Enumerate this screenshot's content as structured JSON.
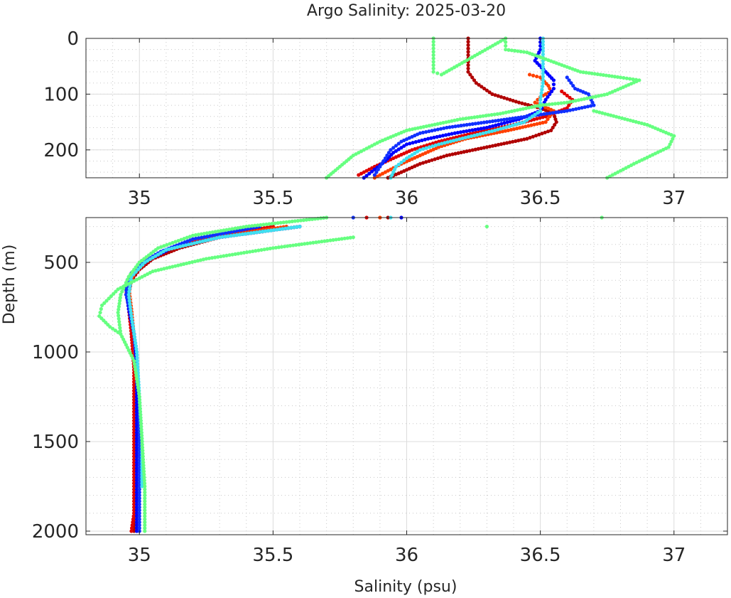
{
  "chart_data": [
    {
      "type": "scatter",
      "panel": "top",
      "title": "Argo Salinity: 2025-03-20",
      "xlabel": "",
      "ylabel": "",
      "xlim": [
        34.8,
        37.2
      ],
      "ylim": [
        0,
        250
      ],
      "y_reversed": true,
      "grid": true,
      "minor_grid": true,
      "xticks": [
        35,
        35.5,
        36,
        36.5,
        37
      ],
      "xtick_labels": [
        "35",
        "35.5",
        "36",
        "36.5",
        "37"
      ],
      "yticks": [
        0,
        100,
        200
      ],
      "ytick_labels": [
        "0",
        "100",
        "200"
      ],
      "series": [
        {
          "color": "#b00000",
          "points": [
            [
              36.23,
              0
            ],
            [
              36.23,
              30
            ],
            [
              36.23,
              60
            ],
            [
              36.26,
              80
            ],
            [
              36.32,
              100
            ],
            [
              36.42,
              115
            ],
            [
              36.5,
              125
            ],
            [
              36.55,
              135
            ],
            [
              36.56,
              150
            ],
            [
              36.54,
              165
            ],
            [
              36.45,
              180
            ],
            [
              36.3,
              195
            ],
            [
              36.15,
              210
            ],
            [
              36.05,
              225
            ],
            [
              35.98,
              240
            ],
            [
              35.93,
              250
            ]
          ]
        },
        {
          "color": "#e00000",
          "points": [
            [
              36.58,
              95
            ],
            [
              36.62,
              110
            ],
            [
              36.6,
              125
            ],
            [
              36.52,
              140
            ],
            [
              36.4,
              155
            ],
            [
              36.25,
              170
            ],
            [
              36.12,
              185
            ],
            [
              36.02,
              200
            ],
            [
              35.95,
              215
            ],
            [
              35.88,
              230
            ],
            [
              35.82,
              245
            ]
          ]
        },
        {
          "color": "#ff4000",
          "points": [
            [
              36.46,
              65
            ],
            [
              36.5,
              70
            ],
            [
              36.53,
              85
            ],
            [
              36.54,
              95
            ],
            [
              36.5,
              105
            ],
            [
              36.48,
              115
            ],
            [
              36.55,
              130
            ],
            [
              36.52,
              150
            ],
            [
              36.38,
              165
            ],
            [
              36.22,
              180
            ],
            [
              36.12,
              195
            ],
            [
              36.05,
              210
            ],
            [
              35.98,
              225
            ],
            [
              35.92,
              240
            ],
            [
              35.88,
              250
            ]
          ]
        },
        {
          "color": "#0000ff",
          "points": [
            [
              36.5,
              0
            ],
            [
              36.5,
              20
            ],
            [
              36.48,
              40
            ],
            [
              36.52,
              60
            ],
            [
              36.55,
              75
            ],
            [
              36.55,
              90
            ],
            [
              36.52,
              110
            ],
            [
              36.5,
              130
            ],
            [
              36.42,
              145
            ],
            [
              36.3,
              160
            ],
            [
              36.18,
              170
            ],
            [
              36.08,
              180
            ],
            [
              36.0,
              190
            ],
            [
              35.95,
              205
            ],
            [
              35.92,
              220
            ],
            [
              35.88,
              235
            ],
            [
              35.84,
              250
            ]
          ]
        },
        {
          "color": "#1030ff",
          "points": [
            [
              36.6,
              70
            ],
            [
              36.63,
              90
            ],
            [
              36.68,
              100
            ],
            [
              36.7,
              120
            ],
            [
              36.6,
              130
            ],
            [
              36.45,
              140
            ],
            [
              36.3,
              150
            ],
            [
              36.15,
              160
            ],
            [
              36.05,
              170
            ],
            [
              35.98,
              185
            ],
            [
              35.94,
              200
            ],
            [
              35.92,
              215
            ],
            [
              35.9,
              230
            ],
            [
              35.88,
              245
            ]
          ]
        },
        {
          "color": "#40e0f0",
          "points": [
            [
              36.51,
              0
            ],
            [
              36.51,
              40
            ],
            [
              36.51,
              80
            ],
            [
              36.5,
              110
            ],
            [
              36.5,
              130
            ],
            [
              36.44,
              150
            ],
            [
              36.33,
              165
            ],
            [
              36.22,
              178
            ],
            [
              36.12,
              190
            ],
            [
              36.05,
              200
            ],
            [
              36.0,
              215
            ],
            [
              35.96,
              230
            ],
            [
              35.94,
              250
            ]
          ]
        },
        {
          "color": "#66ff80",
          "points": [
            [
              36.1,
              0
            ],
            [
              36.1,
              30
            ],
            [
              36.1,
              60
            ],
            [
              36.13,
              65
            ],
            [
              36.37,
              0
            ],
            [
              36.37,
              20
            ],
            [
              36.45,
              25
            ],
            [
              36.65,
              60
            ],
            [
              36.8,
              70
            ],
            [
              36.87,
              75
            ],
            [
              36.75,
              100
            ],
            [
              36.6,
              115
            ],
            [
              36.5,
              120
            ],
            [
              36.35,
              135
            ],
            [
              36.2,
              145
            ],
            [
              36.0,
              165
            ],
            [
              35.9,
              185
            ],
            [
              35.8,
              210
            ],
            [
              35.75,
              230
            ],
            [
              35.7,
              250
            ],
            [
              36.7,
              130
            ],
            [
              36.9,
              155
            ],
            [
              37.0,
              175
            ],
            [
              36.98,
              195
            ],
            [
              36.85,
              225
            ],
            [
              36.75,
              250
            ]
          ]
        }
      ]
    },
    {
      "type": "scatter",
      "panel": "bottom",
      "title": "",
      "xlabel": "Salinity (psu)",
      "ylabel": "Depth (m)",
      "xlim": [
        34.8,
        37.2
      ],
      "ylim": [
        250,
        2020
      ],
      "y_reversed": true,
      "grid": true,
      "minor_grid": true,
      "xticks": [
        35,
        35.5,
        36,
        36.5,
        37
      ],
      "xtick_labels": [
        "35",
        "35.5",
        "36",
        "36.5",
        "37"
      ],
      "yticks": [
        500,
        1000,
        1500,
        2000
      ],
      "ytick_labels": [
        "500",
        "1000",
        "1500",
        "2000"
      ],
      "series": [
        {
          "color": "#b00000",
          "points": [
            [
              35.93,
              250
            ],
            [
              35.6,
              300
            ],
            [
              35.3,
              360
            ],
            [
              35.15,
              420
            ],
            [
              35.05,
              480
            ],
            [
              35.0,
              540
            ],
            [
              34.97,
              600
            ],
            [
              34.96,
              680
            ],
            [
              34.97,
              780
            ],
            [
              34.97,
              900
            ],
            [
              34.98,
              1050
            ],
            [
              34.98,
              1200
            ],
            [
              34.98,
              1400
            ],
            [
              34.98,
              1600
            ],
            [
              34.98,
              1800
            ],
            [
              34.98,
              2000
            ]
          ]
        },
        {
          "color": "#e00000",
          "points": [
            [
              35.85,
              250
            ],
            [
              35.5,
              300
            ],
            [
              35.25,
              360
            ],
            [
              35.1,
              430
            ],
            [
              35.02,
              500
            ],
            [
              34.97,
              570
            ],
            [
              34.95,
              650
            ],
            [
              34.96,
              760
            ],
            [
              34.97,
              900
            ],
            [
              34.98,
              1100
            ],
            [
              34.98,
              1300
            ],
            [
              34.98,
              1500
            ],
            [
              34.98,
              1700
            ],
            [
              34.98,
              1900
            ],
            [
              34.97,
              2000
            ]
          ]
        },
        {
          "color": "#ff4000",
          "points": [
            [
              35.9,
              250
            ],
            [
              35.55,
              300
            ],
            [
              35.28,
              360
            ],
            [
              35.12,
              420
            ],
            [
              35.03,
              490
            ],
            [
              34.98,
              560
            ],
            [
              34.96,
              640
            ],
            [
              34.97,
              760
            ],
            [
              34.98,
              920
            ],
            [
              34.99,
              1200
            ],
            [
              34.99,
              1500
            ],
            [
              34.99,
              1800
            ],
            [
              34.99,
              2000
            ]
          ]
        },
        {
          "color": "#0000ff",
          "points": [
            [
              35.98,
              250
            ],
            [
              35.6,
              300
            ],
            [
              35.3,
              360
            ],
            [
              35.12,
              420
            ],
            [
              35.03,
              490
            ],
            [
              34.97,
              560
            ],
            [
              34.95,
              640
            ],
            [
              34.96,
              760
            ],
            [
              34.98,
              900
            ],
            [
              34.99,
              1100
            ],
            [
              34.99,
              1300
            ],
            [
              34.99,
              1500
            ],
            [
              34.99,
              1700
            ],
            [
              34.99,
              1900
            ],
            [
              34.99,
              2000
            ]
          ]
        },
        {
          "color": "#1030ff",
          "points": [
            [
              35.8,
              250
            ],
            [
              35.45,
              300
            ],
            [
              35.2,
              370
            ],
            [
              35.08,
              440
            ],
            [
              35.0,
              510
            ],
            [
              34.96,
              590
            ],
            [
              34.95,
              680
            ],
            [
              34.97,
              800
            ],
            [
              34.99,
              1000
            ],
            [
              35.0,
              1300
            ],
            [
              35.0,
              1600
            ],
            [
              35.0,
              1900
            ],
            [
              35.0,
              2000
            ]
          ]
        },
        {
          "color": "#40e0f0",
          "points": [
            [
              35.94,
              250
            ],
            [
              35.6,
              300
            ],
            [
              35.3,
              360
            ],
            [
              35.1,
              430
            ],
            [
              35.02,
              500
            ],
            [
              34.97,
              580
            ],
            [
              34.96,
              680
            ],
            [
              34.97,
              800
            ],
            [
              34.99,
              1000
            ],
            [
              35.0,
              1250
            ],
            [
              35.01,
              1500
            ],
            [
              35.01,
              1750
            ]
          ]
        },
        {
          "color": "#66ff80",
          "points": [
            [
              35.7,
              250
            ],
            [
              35.4,
              300
            ],
            [
              35.2,
              350
            ],
            [
              35.07,
              420
            ],
            [
              35.0,
              500
            ],
            [
              34.96,
              580
            ],
            [
              34.93,
              680
            ],
            [
              34.92,
              780
            ],
            [
              34.93,
              900
            ],
            [
              34.98,
              1050
            ],
            [
              35.0,
              1250
            ],
            [
              35.01,
              1500
            ],
            [
              35.02,
              1750
            ],
            [
              35.02,
              2000
            ],
            [
              36.73,
              250
            ],
            [
              36.3,
              300
            ],
            [
              35.8,
              360
            ],
            [
              35.5,
              420
            ],
            [
              35.25,
              480
            ],
            [
              35.05,
              550
            ],
            [
              34.92,
              650
            ],
            [
              34.86,
              740
            ],
            [
              34.85,
              800
            ],
            [
              34.89,
              860
            ],
            [
              34.93,
              900
            ]
          ]
        }
      ]
    }
  ]
}
